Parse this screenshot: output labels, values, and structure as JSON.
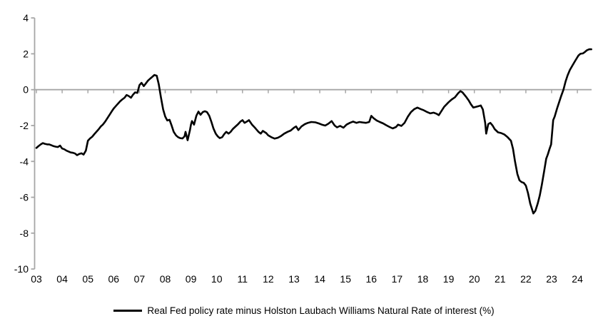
{
  "page": {
    "background": "#ffffff"
  },
  "legend": {
    "marker": "line",
    "marker_color": "#000000"
  },
  "chart_data": {
    "type": "line",
    "title": "",
    "xlabel": "",
    "ylabel": "",
    "grid": false,
    "legend_position": "bottom-center",
    "axis_color": "#a6a6a6",
    "line_color": "#000000",
    "line_width": 2.6,
    "ylim": [
      -10,
      4
    ],
    "y_ticks": [
      4,
      2,
      0,
      -2,
      -4,
      -6,
      -8,
      -10
    ],
    "x_categories": [
      "03",
      "04",
      "05",
      "06",
      "07",
      "08",
      "09",
      "10",
      "11",
      "12",
      "13",
      "14",
      "15",
      "16",
      "17",
      "18",
      "19",
      "20",
      "21",
      "22",
      "23",
      "24"
    ],
    "x_start_year": 2003,
    "x_end": 2024.55,
    "series": [
      {
        "name": "Real Fed policy rate minus Holston Laubach Williams Natural Rate of interest (%)",
        "color": "#000000",
        "points": [
          [
            2003.0,
            -3.25
          ],
          [
            2003.08,
            -3.15
          ],
          [
            2003.17,
            -3.05
          ],
          [
            2003.25,
            -2.98
          ],
          [
            2003.33,
            -3.02
          ],
          [
            2003.42,
            -3.05
          ],
          [
            2003.5,
            -3.05
          ],
          [
            2003.58,
            -3.1
          ],
          [
            2003.67,
            -3.15
          ],
          [
            2003.75,
            -3.18
          ],
          [
            2003.83,
            -3.2
          ],
          [
            2003.92,
            -3.12
          ],
          [
            2004.0,
            -3.28
          ],
          [
            2004.08,
            -3.32
          ],
          [
            2004.17,
            -3.4
          ],
          [
            2004.25,
            -3.45
          ],
          [
            2004.33,
            -3.5
          ],
          [
            2004.42,
            -3.52
          ],
          [
            2004.5,
            -3.56
          ],
          [
            2004.58,
            -3.65
          ],
          [
            2004.67,
            -3.58
          ],
          [
            2004.75,
            -3.55
          ],
          [
            2004.83,
            -3.62
          ],
          [
            2004.92,
            -3.4
          ],
          [
            2005.0,
            -2.85
          ],
          [
            2005.08,
            -2.72
          ],
          [
            2005.17,
            -2.62
          ],
          [
            2005.25,
            -2.48
          ],
          [
            2005.33,
            -2.35
          ],
          [
            2005.42,
            -2.2
          ],
          [
            2005.5,
            -2.05
          ],
          [
            2005.58,
            -1.95
          ],
          [
            2005.67,
            -1.78
          ],
          [
            2005.75,
            -1.6
          ],
          [
            2005.83,
            -1.42
          ],
          [
            2005.92,
            -1.22
          ],
          [
            2006.0,
            -1.05
          ],
          [
            2006.08,
            -0.92
          ],
          [
            2006.17,
            -0.78
          ],
          [
            2006.25,
            -0.65
          ],
          [
            2006.33,
            -0.55
          ],
          [
            2006.42,
            -0.45
          ],
          [
            2006.5,
            -0.3
          ],
          [
            2006.58,
            -0.35
          ],
          [
            2006.67,
            -0.45
          ],
          [
            2006.75,
            -0.28
          ],
          [
            2006.83,
            -0.15
          ],
          [
            2006.92,
            -0.18
          ],
          [
            2007.0,
            0.25
          ],
          [
            2007.08,
            0.38
          ],
          [
            2007.17,
            0.2
          ],
          [
            2007.25,
            0.35
          ],
          [
            2007.33,
            0.5
          ],
          [
            2007.42,
            0.62
          ],
          [
            2007.5,
            0.72
          ],
          [
            2007.58,
            0.82
          ],
          [
            2007.67,
            0.78
          ],
          [
            2007.75,
            0.3
          ],
          [
            2007.83,
            -0.4
          ],
          [
            2007.92,
            -1.1
          ],
          [
            2008.0,
            -1.5
          ],
          [
            2008.08,
            -1.72
          ],
          [
            2008.17,
            -1.68
          ],
          [
            2008.25,
            -2.0
          ],
          [
            2008.33,
            -2.35
          ],
          [
            2008.42,
            -2.55
          ],
          [
            2008.5,
            -2.65
          ],
          [
            2008.58,
            -2.7
          ],
          [
            2008.67,
            -2.72
          ],
          [
            2008.75,
            -2.6
          ],
          [
            2008.79,
            -2.35
          ],
          [
            2008.87,
            -2.82
          ],
          [
            2008.96,
            -2.25
          ],
          [
            2009.0,
            -1.95
          ],
          [
            2009.04,
            -1.75
          ],
          [
            2009.12,
            -1.95
          ],
          [
            2009.21,
            -1.45
          ],
          [
            2009.29,
            -1.22
          ],
          [
            2009.37,
            -1.4
          ],
          [
            2009.46,
            -1.25
          ],
          [
            2009.54,
            -1.2
          ],
          [
            2009.62,
            -1.25
          ],
          [
            2009.71,
            -1.45
          ],
          [
            2009.79,
            -1.78
          ],
          [
            2009.87,
            -2.15
          ],
          [
            2009.96,
            -2.45
          ],
          [
            2010.04,
            -2.6
          ],
          [
            2010.12,
            -2.7
          ],
          [
            2010.21,
            -2.65
          ],
          [
            2010.29,
            -2.48
          ],
          [
            2010.37,
            -2.35
          ],
          [
            2010.46,
            -2.45
          ],
          [
            2010.54,
            -2.35
          ],
          [
            2010.62,
            -2.2
          ],
          [
            2010.71,
            -2.08
          ],
          [
            2010.83,
            -1.92
          ],
          [
            2010.92,
            -1.78
          ],
          [
            2011.0,
            -1.7
          ],
          [
            2011.08,
            -1.85
          ],
          [
            2011.17,
            -1.78
          ],
          [
            2011.25,
            -1.7
          ],
          [
            2011.37,
            -1.95
          ],
          [
            2011.5,
            -2.15
          ],
          [
            2011.62,
            -2.35
          ],
          [
            2011.71,
            -2.45
          ],
          [
            2011.79,
            -2.3
          ],
          [
            2011.92,
            -2.42
          ],
          [
            2012.0,
            -2.55
          ],
          [
            2012.12,
            -2.65
          ],
          [
            2012.25,
            -2.73
          ],
          [
            2012.37,
            -2.68
          ],
          [
            2012.5,
            -2.58
          ],
          [
            2012.62,
            -2.45
          ],
          [
            2012.75,
            -2.35
          ],
          [
            2012.87,
            -2.28
          ],
          [
            2013.0,
            -2.12
          ],
          [
            2013.08,
            -2.05
          ],
          [
            2013.17,
            -2.25
          ],
          [
            2013.29,
            -2.05
          ],
          [
            2013.42,
            -1.92
          ],
          [
            2013.54,
            -1.85
          ],
          [
            2013.67,
            -1.8
          ],
          [
            2013.83,
            -1.82
          ],
          [
            2013.96,
            -1.88
          ],
          [
            2014.08,
            -1.95
          ],
          [
            2014.21,
            -2.0
          ],
          [
            2014.33,
            -1.9
          ],
          [
            2014.46,
            -1.75
          ],
          [
            2014.58,
            -2.0
          ],
          [
            2014.67,
            -2.1
          ],
          [
            2014.79,
            -2.02
          ],
          [
            2014.92,
            -2.12
          ],
          [
            2015.04,
            -1.95
          ],
          [
            2015.17,
            -1.85
          ],
          [
            2015.29,
            -1.78
          ],
          [
            2015.42,
            -1.85
          ],
          [
            2015.54,
            -1.8
          ],
          [
            2015.67,
            -1.83
          ],
          [
            2015.79,
            -1.85
          ],
          [
            2015.92,
            -1.8
          ],
          [
            2016.0,
            -1.46
          ],
          [
            2016.08,
            -1.58
          ],
          [
            2016.21,
            -1.72
          ],
          [
            2016.33,
            -1.8
          ],
          [
            2016.46,
            -1.88
          ],
          [
            2016.58,
            -1.98
          ],
          [
            2016.71,
            -2.08
          ],
          [
            2016.83,
            -2.16
          ],
          [
            2016.96,
            -2.08
          ],
          [
            2017.04,
            -1.95
          ],
          [
            2017.17,
            -2.02
          ],
          [
            2017.29,
            -1.85
          ],
          [
            2017.42,
            -1.5
          ],
          [
            2017.54,
            -1.25
          ],
          [
            2017.67,
            -1.08
          ],
          [
            2017.79,
            -1.0
          ],
          [
            2017.92,
            -1.08
          ],
          [
            2018.04,
            -1.15
          ],
          [
            2018.17,
            -1.25
          ],
          [
            2018.29,
            -1.32
          ],
          [
            2018.42,
            -1.28
          ],
          [
            2018.54,
            -1.35
          ],
          [
            2018.62,
            -1.42
          ],
          [
            2018.71,
            -1.22
          ],
          [
            2018.83,
            -0.95
          ],
          [
            2018.92,
            -0.82
          ],
          [
            2019.0,
            -0.7
          ],
          [
            2019.12,
            -0.55
          ],
          [
            2019.25,
            -0.42
          ],
          [
            2019.37,
            -0.2
          ],
          [
            2019.46,
            -0.08
          ],
          [
            2019.54,
            -0.15
          ],
          [
            2019.67,
            -0.38
          ],
          [
            2019.79,
            -0.62
          ],
          [
            2019.87,
            -0.82
          ],
          [
            2019.96,
            -1.0
          ],
          [
            2020.08,
            -0.95
          ],
          [
            2020.17,
            -0.92
          ],
          [
            2020.25,
            -0.88
          ],
          [
            2020.33,
            -1.1
          ],
          [
            2020.42,
            -1.85
          ],
          [
            2020.46,
            -2.45
          ],
          [
            2020.54,
            -1.92
          ],
          [
            2020.62,
            -1.85
          ],
          [
            2020.71,
            -2.0
          ],
          [
            2020.79,
            -2.2
          ],
          [
            2020.92,
            -2.38
          ],
          [
            2021.04,
            -2.42
          ],
          [
            2021.17,
            -2.5
          ],
          [
            2021.29,
            -2.65
          ],
          [
            2021.42,
            -2.85
          ],
          [
            2021.5,
            -3.3
          ],
          [
            2021.58,
            -4.0
          ],
          [
            2021.67,
            -4.7
          ],
          [
            2021.75,
            -5.05
          ],
          [
            2021.83,
            -5.15
          ],
          [
            2021.92,
            -5.2
          ],
          [
            2022.0,
            -5.35
          ],
          [
            2022.08,
            -5.75
          ],
          [
            2022.17,
            -6.35
          ],
          [
            2022.29,
            -6.9
          ],
          [
            2022.37,
            -6.75
          ],
          [
            2022.46,
            -6.35
          ],
          [
            2022.54,
            -5.9
          ],
          [
            2022.62,
            -5.3
          ],
          [
            2022.71,
            -4.55
          ],
          [
            2022.79,
            -3.85
          ],
          [
            2022.85,
            -3.62
          ],
          [
            2022.92,
            -3.3
          ],
          [
            2022.98,
            -3.05
          ],
          [
            2023.02,
            -2.4
          ],
          [
            2023.06,
            -1.7
          ],
          [
            2023.12,
            -1.5
          ],
          [
            2023.21,
            -1.05
          ],
          [
            2023.29,
            -0.7
          ],
          [
            2023.37,
            -0.35
          ],
          [
            2023.46,
            0.0
          ],
          [
            2023.54,
            0.45
          ],
          [
            2023.62,
            0.8
          ],
          [
            2023.71,
            1.1
          ],
          [
            2023.79,
            1.3
          ],
          [
            2023.87,
            1.5
          ],
          [
            2023.96,
            1.72
          ],
          [
            2024.04,
            1.9
          ],
          [
            2024.12,
            2.0
          ],
          [
            2024.21,
            2.02
          ],
          [
            2024.29,
            2.1
          ],
          [
            2024.37,
            2.2
          ],
          [
            2024.46,
            2.25
          ],
          [
            2024.54,
            2.25
          ]
        ]
      }
    ]
  }
}
